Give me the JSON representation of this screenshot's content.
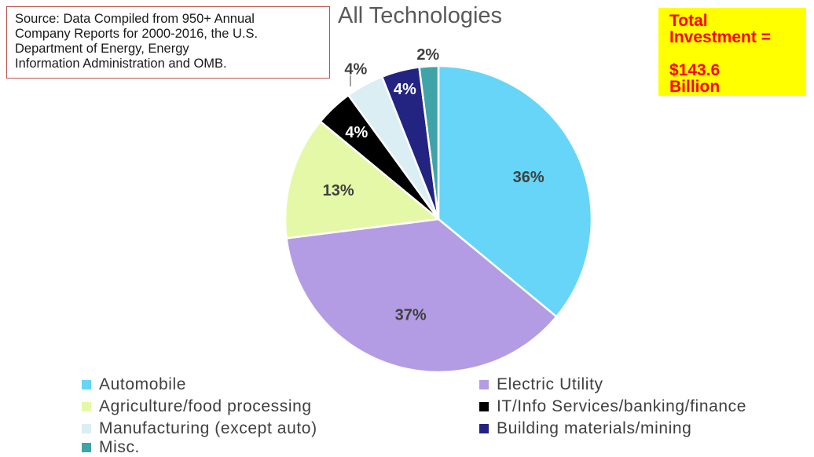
{
  "source_note": "Source: Data Compiled from 950+ Annual\nCompany Reports for 2000-2016, the U.S.\nDepartment  of Energy, Energy\nInformation Administration and OMB.",
  "total_box": "Total\nInvestment =\n\n$143.6\nBillion",
  "chart_data": {
    "type": "pie",
    "title": "All Technologies",
    "slices": [
      {
        "name": "Automobile",
        "value": 36,
        "label": "36%",
        "color": "#66d5f7"
      },
      {
        "name": "Electric Utility",
        "value": 37,
        "label": "37%",
        "color": "#b39ce3"
      },
      {
        "name": "Agriculture/food processing",
        "value": 13,
        "label": "13%",
        "color": "#e5f8a8"
      },
      {
        "name": "IT/Info Services/banking/finance",
        "value": 4,
        "label": "4%",
        "color": "#000000"
      },
      {
        "name": "Manufacturing (except auto)",
        "value": 4,
        "label": "4%",
        "color": "#daeef3"
      },
      {
        "name": "Building materials/mining",
        "value": 4,
        "label": "4%",
        "color": "#232382"
      },
      {
        "name": "Misc.",
        "value": 2,
        "label": "2%",
        "color": "#3fa4a8"
      }
    ],
    "legend_position": "bottom"
  }
}
